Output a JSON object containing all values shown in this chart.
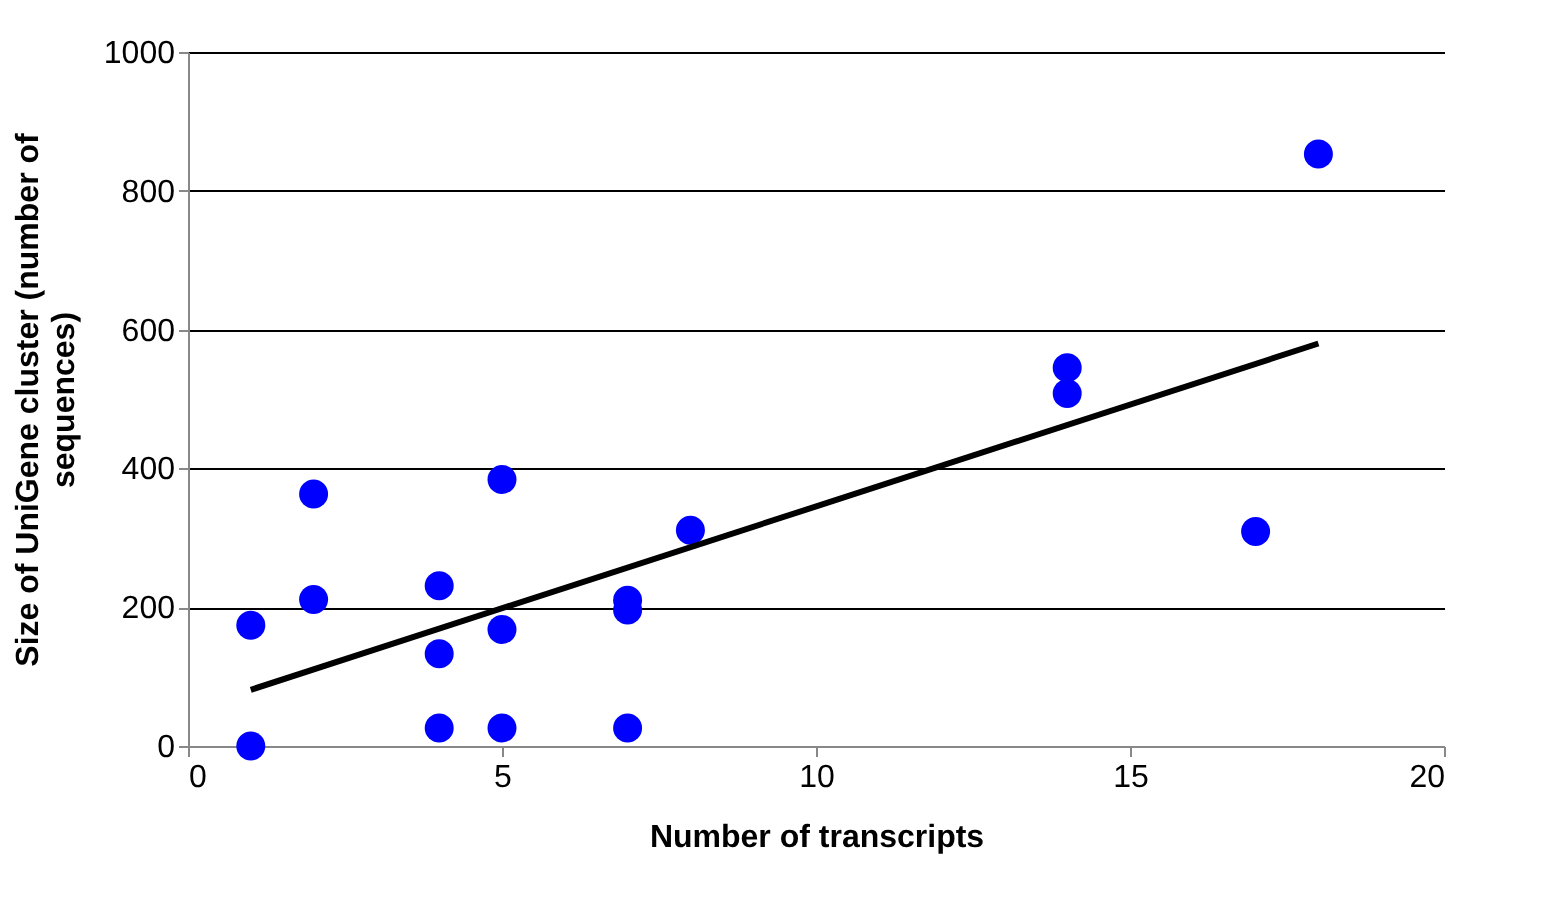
{
  "chart_data": {
    "type": "scatter",
    "xlabel": "Number of transcripts",
    "ylabel": "Size of UniGene cluster (number of sequences)",
    "xlim": [
      0,
      20
    ],
    "xticks": [
      0,
      5,
      10,
      15,
      20
    ],
    "ylim": [
      0,
      1000
    ],
    "yticks": [
      0,
      200,
      400,
      600,
      800,
      1000
    ],
    "grid": "y",
    "marker": "circle",
    "series": [
      {
        "color": "#0000ff",
        "x": [
          1,
          1,
          2,
          2,
          4,
          4,
          4,
          5,
          5,
          5,
          7,
          7,
          7,
          8,
          14,
          14,
          17,
          18
        ],
        "values": [
          174,
          0,
          363,
          211,
          231,
          133,
          26,
          384,
          168,
          26,
          210,
          196,
          26,
          311,
          545,
          508,
          309,
          853
        ]
      },
      {
        "type": "line",
        "marker": "none",
        "color": "#000000",
        "x": [
          1,
          18
        ],
        "values": [
          81,
          580
        ]
      }
    ]
  }
}
